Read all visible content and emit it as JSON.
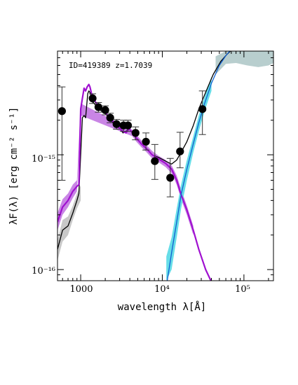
{
  "chart_data": {
    "type": "scatter",
    "title": "",
    "annotation": "ID=419389 z=1.7039",
    "xlabel": "wavelength λ[Å]",
    "ylabel": "λF(λ) [erg cm⁻² s⁻¹]",
    "xscale": "log",
    "yscale": "log",
    "xlim": [
      520,
      230000
    ],
    "ylim": [
      8e-17,
      8e-15
    ],
    "grid": false,
    "x_ticks": [
      {
        "value": 1000,
        "label": "1000"
      },
      {
        "value": 10000,
        "label": "10⁴"
      },
      {
        "value": 100000,
        "label": "10⁵"
      }
    ],
    "y_ticks": [
      {
        "value": 1e-16,
        "label": "10⁻¹⁶"
      },
      {
        "value": 1e-15,
        "label": "10⁻¹⁵"
      }
    ],
    "colors": {
      "points": "#000000",
      "total_model": "#000000",
      "total_band": "#c8c8c8",
      "stellar_model": "#a010d0",
      "stellar_band": "#c070e0",
      "dust_model": "#1060d0",
      "dust_band": "#66dde8",
      "dust_hot_band": "#b8cece"
    },
    "points": [
      {
        "x": 590,
        "y": 2.4e-15,
        "yerr_low": 1.8e-15,
        "yerr_high": 1.5e-15
      },
      {
        "x": 1400,
        "y": 3.1e-15,
        "yerr_low": 3e-16,
        "yerr_high": 3e-16
      },
      {
        "x": 1650,
        "y": 2.6e-15,
        "yerr_low": 2.5e-16,
        "yerr_high": 2.5e-16
      },
      {
        "x": 2000,
        "y": 2.45e-15,
        "yerr_low": 2.2e-16,
        "yerr_high": 2.2e-16
      },
      {
        "x": 2300,
        "y": 2.1e-15,
        "yerr_low": 2e-16,
        "yerr_high": 2e-16
      },
      {
        "x": 2750,
        "y": 1.85e-15,
        "yerr_low": 1.8e-16,
        "yerr_high": 1.8e-16
      },
      {
        "x": 3350,
        "y": 1.8e-15,
        "yerr_low": 2e-16,
        "yerr_high": 2e-16
      },
      {
        "x": 3800,
        "y": 1.8e-15,
        "yerr_low": 2e-16,
        "yerr_high": 2e-16
      },
      {
        "x": 4700,
        "y": 1.55e-15,
        "yerr_low": 2e-16,
        "yerr_high": 2e-16
      },
      {
        "x": 6300,
        "y": 1.3e-15,
        "yerr_low": 2e-16,
        "yerr_high": 2.5e-16
      },
      {
        "x": 8100,
        "y": 8.8e-16,
        "yerr_low": 2.7e-16,
        "yerr_high": 3.5e-16
      },
      {
        "x": 12500,
        "y": 6.3e-16,
        "yerr_low": 2e-16,
        "yerr_high": 3e-16
      },
      {
        "x": 16500,
        "y": 1.07e-15,
        "yerr_low": 3e-16,
        "yerr_high": 5e-16
      },
      {
        "x": 31000,
        "y": 2.5e-15,
        "yerr_low": 1e-15,
        "yerr_high": 1.1e-15
      }
    ],
    "series": [
      {
        "kind": "total",
        "x": [
          520,
          600,
          700,
          800,
          900,
          950,
          1050,
          1100,
          1150,
          1220,
          1260,
          1300,
          1400,
          1600,
          1800,
          2000,
          2300,
          2600,
          3000,
          3300,
          3600,
          3900,
          4300,
          4800,
          5500,
          6500,
          7500,
          9000,
          11000,
          13000,
          15000,
          17000,
          20000,
          24000,
          28000,
          34000,
          42000,
          52000,
          62000,
          75000
        ],
        "y": [
          1.5e-16,
          2.2e-16,
          2.4e-16,
          3.1e-16,
          4e-16,
          4.6e-16,
          2.1e-15,
          2.2e-15,
          2.1e-15,
          3.4e-15,
          3.6e-15,
          3.5e-15,
          2.9e-15,
          2.6e-15,
          2.4e-15,
          2.3e-15,
          2e-15,
          1.85e-15,
          1.7e-15,
          1.55e-15,
          1.6e-15,
          1.7e-15,
          1.55e-15,
          1.4e-15,
          1.25e-15,
          1.12e-15,
          1e-15,
          9.5e-16,
          8.8e-16,
          8.3e-16,
          9e-16,
          1.05e-15,
          1.3e-15,
          1.8e-15,
          2.5e-15,
          3.5e-15,
          5e-15,
          6.5e-15,
          7.5e-15,
          8.5e-15
        ]
      },
      {
        "kind": "stellar",
        "x": [
          520,
          600,
          700,
          800,
          900,
          950,
          1000,
          1050,
          1100,
          1150,
          1200,
          1260,
          1300,
          1400,
          1600,
          1800,
          2000,
          2300,
          2600,
          3000,
          3300,
          3600,
          3900,
          4300,
          4800,
          5500,
          6500,
          7500,
          9000,
          11000,
          13000,
          15000,
          17000,
          20000,
          24000,
          28000,
          34000,
          40000
        ],
        "y": [
          2.6e-16,
          3.5e-16,
          4e-16,
          4.8e-16,
          5.3e-16,
          5.5e-16,
          2.5e-15,
          3.1e-15,
          3.8e-15,
          3.6e-15,
          3.9e-15,
          4.1e-15,
          3.9e-15,
          3.1e-15,
          2.75e-15,
          2.5e-15,
          2.35e-15,
          2.05e-15,
          1.9e-15,
          1.7e-15,
          1.6e-15,
          1.55e-15,
          1.7e-15,
          1.55e-15,
          1.4e-15,
          1.25e-15,
          1.12e-15,
          1e-15,
          9.2e-16,
          8.4e-16,
          7.5e-16,
          6e-16,
          4.5e-16,
          3.3e-16,
          2.2e-16,
          1.5e-16,
          1e-16,
          7.8e-17
        ]
      },
      {
        "kind": "dust",
        "x": [
          11500,
          13000,
          15000,
          17000,
          20000,
          24000,
          28000,
          33000,
          40000,
          50000,
          60000,
          72000
        ],
        "y": [
          8e-17,
          1.4e-16,
          2.6e-16,
          4.5e-16,
          7.5e-16,
          1.25e-15,
          1.9e-15,
          2.8e-15,
          4.2e-15,
          6e-15,
          7.3e-15,
          8.5e-15
        ]
      }
    ],
    "dust_band": {
      "x": [
        11200,
        13000,
        15000,
        17000,
        20000,
        24000,
        28000,
        33000,
        40000
      ],
      "low": [
        8e-17,
        1e-16,
        1.9e-16,
        3.4e-16,
        6e-16,
        1.05e-15,
        1.6e-15,
        2.4e-15,
        3.6e-15
      ],
      "high": [
        1.3e-16,
        1.9e-16,
        3.4e-16,
        5.5e-16,
        9e-16,
        1.45e-15,
        2.2e-15,
        3.2e-15,
        4.8e-15
      ]
    },
    "dust_hot_band": {
      "x": [
        45000,
        60000,
        80000,
        110000,
        150000,
        200000,
        230000
      ],
      "low": [
        5e-15,
        6.2e-15,
        6.3e-15,
        6e-15,
        5.8e-15,
        6e-15,
        6.3e-15
      ],
      "high": [
        7.2e-15,
        8e-15,
        8e-15,
        8e-15,
        8e-15,
        8e-15,
        8e-15
      ]
    },
    "total_band": {
      "x": [
        520,
        600,
        700,
        800,
        900,
        1000
      ],
      "low": [
        1.2e-16,
        1.75e-16,
        2e-16,
        2.7e-16,
        3.4e-16,
        4e-16
      ],
      "high": [
        1.8e-16,
        2.7e-16,
        2.9e-16,
        3.6e-16,
        4.6e-16,
        5.4e-16
      ]
    },
    "stellar_band": {
      "x": [
        520,
        600,
        700,
        800,
        900,
        1000,
        4300,
        4800,
        5500,
        6500,
        7500,
        9000,
        11000,
        13000,
        15000,
        17000,
        20000,
        24000
      ],
      "low": [
        2.2e-16,
        3e-16,
        3.5e-16,
        4.2e-16,
        4.8e-16,
        2.2e-15,
        1.45e-15,
        1.3e-15,
        1.17e-15,
        1.04e-15,
        9.3e-16,
        8.6e-16,
        7.8e-16,
        6.9e-16,
        5.5e-16,
        4.1e-16,
        3e-16,
        2e-16
      ],
      "high": [
        3.1e-16,
        4.1e-16,
        4.6e-16,
        5.5e-16,
        6e-16,
        2.8e-15,
        1.65e-15,
        1.5e-15,
        1.34e-15,
        1.2e-15,
        1.08e-15,
        9.8e-16,
        9e-16,
        8.1e-16,
        6.6e-16,
        5e-16,
        3.6e-16,
        2.4e-16
      ]
    }
  }
}
